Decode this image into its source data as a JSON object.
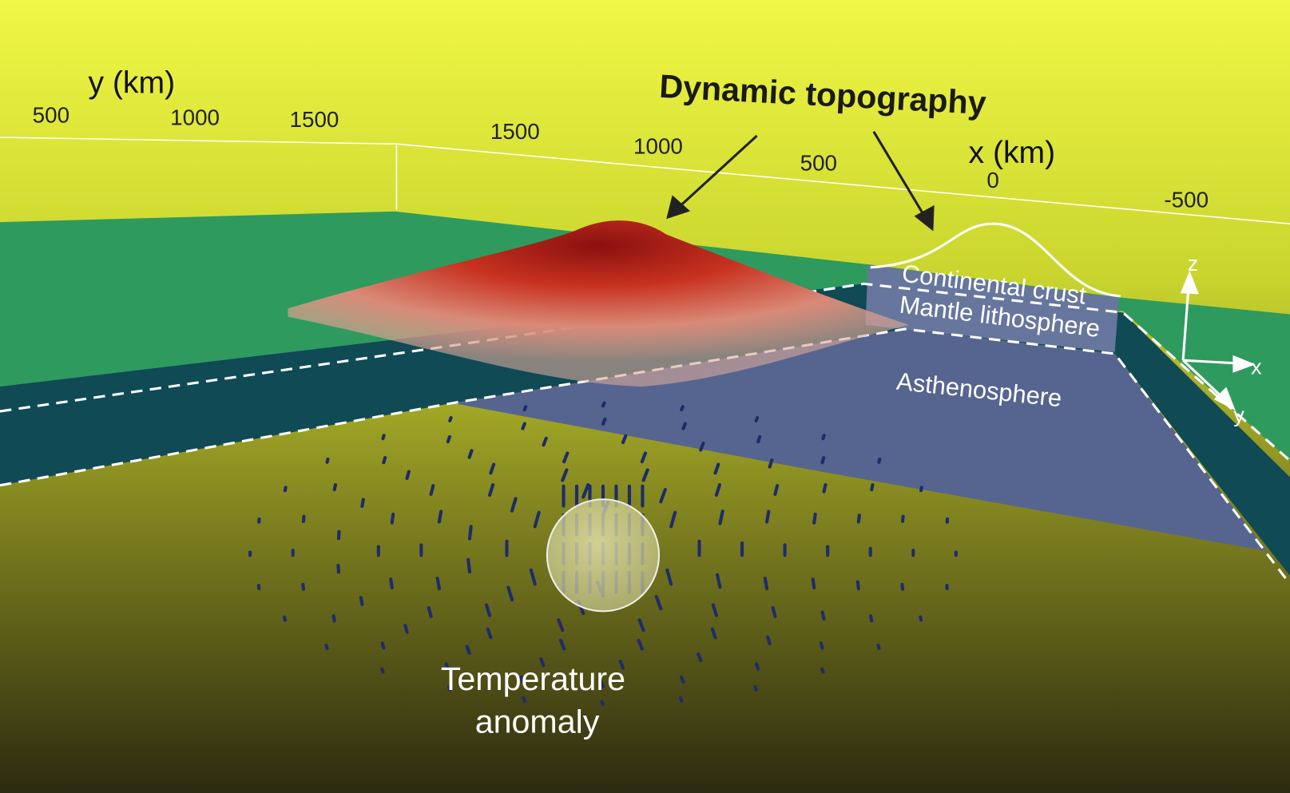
{
  "title": "Dynamic topography",
  "y_axis": {
    "label": "y (km)",
    "ticks": [
      500,
      1000,
      1500
    ]
  },
  "x_axis": {
    "label": "x (km)",
    "ticks": [
      1500,
      1000,
      500,
      0,
      -500
    ]
  },
  "layers": [
    "Continental crust",
    "Mantle lithosphere",
    "Asthenosphere"
  ],
  "anomaly": [
    "Temperature",
    "anomaly"
  ],
  "triad": [
    "z",
    "x",
    "y"
  ]
}
